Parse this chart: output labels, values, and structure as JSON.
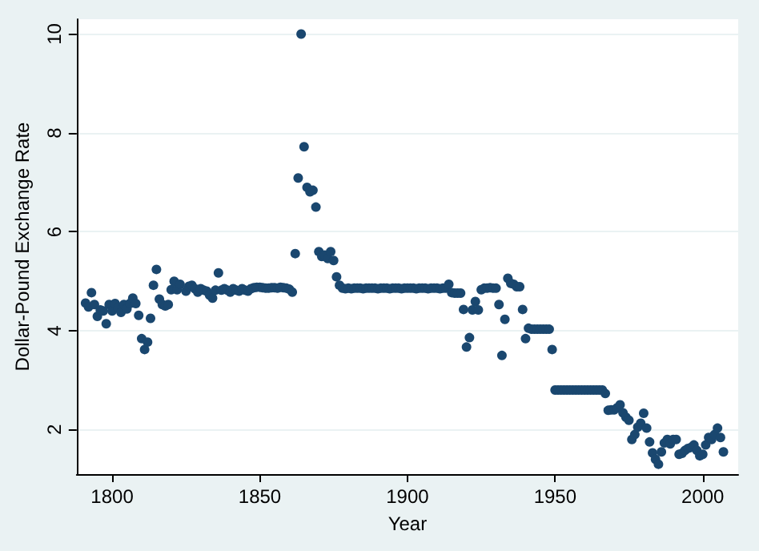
{
  "chart_data": {
    "type": "scatter",
    "xlabel": "Year",
    "ylabel": "Dollar-Pound Exchange Rate",
    "xlim": [
      1788,
      2012
    ],
    "xticks": [
      1800,
      1850,
      1900,
      1950,
      2000
    ],
    "ylim": [
      1.1,
      10.3
    ],
    "yticks": [
      2,
      4,
      6,
      8,
      10
    ],
    "grid": "y",
    "marker": "circle",
    "series": [
      {
        "color": "#1a476f",
        "x": [
          1791,
          1792,
          1793,
          1794,
          1795,
          1796,
          1797,
          1798,
          1799,
          1800,
          1801,
          1802,
          1803,
          1804,
          1805,
          1806,
          1807,
          1808,
          1809,
          1810,
          1811,
          1812,
          1813,
          1814,
          1815,
          1816,
          1817,
          1818,
          1819,
          1820,
          1821,
          1822,
          1823,
          1824,
          1825,
          1826,
          1827,
          1828,
          1829,
          1830,
          1831,
          1832,
          1833,
          1834,
          1835,
          1836,
          1837,
          1838,
          1839,
          1840,
          1841,
          1842,
          1843,
          1844,
          1845,
          1846,
          1847,
          1848,
          1849,
          1850,
          1851,
          1852,
          1853,
          1854,
          1855,
          1856,
          1857,
          1858,
          1859,
          1860,
          1861,
          1862,
          1863,
          1864,
          1865,
          1866,
          1867,
          1868,
          1869,
          1870,
          1871,
          1872,
          1873,
          1874,
          1875,
          1876,
          1877,
          1878,
          1879,
          1880,
          1881,
          1882,
          1883,
          1884,
          1885,
          1886,
          1887,
          1888,
          1889,
          1890,
          1891,
          1892,
          1893,
          1894,
          1895,
          1896,
          1897,
          1898,
          1899,
          1900,
          1901,
          1902,
          1903,
          1904,
          1905,
          1906,
          1907,
          1908,
          1909,
          1910,
          1911,
          1912,
          1913,
          1914,
          1915,
          1916,
          1917,
          1918,
          1919,
          1920,
          1921,
          1922,
          1923,
          1924,
          1925,
          1926,
          1927,
          1928,
          1929,
          1930,
          1931,
          1932,
          1933,
          1934,
          1935,
          1936,
          1937,
          1938,
          1939,
          1940,
          1941,
          1942,
          1943,
          1944,
          1945,
          1946,
          1947,
          1948,
          1949,
          1950,
          1951,
          1952,
          1953,
          1954,
          1955,
          1956,
          1957,
          1958,
          1959,
          1960,
          1961,
          1962,
          1963,
          1964,
          1965,
          1966,
          1967,
          1968,
          1969,
          1970,
          1971,
          1972,
          1973,
          1974,
          1975,
          1976,
          1977,
          1978,
          1979,
          1980,
          1981,
          1982,
          1983,
          1984,
          1985,
          1986,
          1987,
          1988,
          1989,
          1990,
          1991,
          1992,
          1993,
          1994,
          1995,
          1996,
          1997,
          1998,
          1999,
          2000,
          2001,
          2002,
          2003,
          2004,
          2005,
          2006,
          2007
        ],
        "values": [
          4.56,
          4.48,
          4.77,
          4.53,
          4.29,
          4.42,
          4.4,
          4.14,
          4.53,
          4.4,
          4.55,
          4.46,
          4.37,
          4.53,
          4.44,
          4.55,
          4.66,
          4.55,
          4.31,
          3.84,
          3.62,
          3.77,
          4.25,
          4.92,
          5.24,
          4.64,
          4.53,
          4.5,
          4.53,
          4.83,
          5.0,
          4.83,
          4.94,
          null,
          4.8,
          4.9,
          4.92,
          4.85,
          4.78,
          4.85,
          4.82,
          4.8,
          4.72,
          4.66,
          4.82,
          5.17,
          4.82,
          4.85,
          4.82,
          4.78,
          4.85,
          4.82,
          4.8,
          4.85,
          4.82,
          4.8,
          4.85,
          4.87,
          4.88,
          4.88,
          4.87,
          4.86,
          4.86,
          4.87,
          4.87,
          4.86,
          4.88,
          4.87,
          4.86,
          4.84,
          4.78,
          5.56,
          7.09,
          10.0,
          7.72,
          6.9,
          6.81,
          6.84,
          6.5,
          5.6,
          5.5,
          5.53,
          5.46,
          5.6,
          5.42,
          5.09,
          4.92,
          4.86,
          4.85,
          4.86,
          4.85,
          4.86,
          4.86,
          4.86,
          4.85,
          4.86,
          4.86,
          4.86,
          4.86,
          4.85,
          4.86,
          4.86,
          4.86,
          4.85,
          4.86,
          4.86,
          4.86,
          4.85,
          4.86,
          4.86,
          4.86,
          4.86,
          4.85,
          4.86,
          4.86,
          4.86,
          4.85,
          4.86,
          4.86,
          4.86,
          4.85,
          4.86,
          4.86,
          4.94,
          4.77,
          4.76,
          4.76,
          4.76,
          4.43,
          3.67,
          3.86,
          4.42,
          4.59,
          4.42,
          4.83,
          4.86,
          4.86,
          4.87,
          4.86,
          4.86,
          4.53,
          3.5,
          4.23,
          5.06,
          4.96,
          4.94,
          4.89,
          4.89,
          4.43,
          3.84,
          4.05,
          4.03,
          4.03,
          4.03,
          4.03,
          4.03,
          4.03,
          4.03,
          3.62,
          2.8,
          2.8,
          2.8,
          2.8,
          2.8,
          2.8,
          2.8,
          2.8,
          2.8,
          2.8,
          2.8,
          2.8,
          2.8,
          2.8,
          2.8,
          2.8,
          2.8,
          2.73,
          2.39,
          2.4,
          2.4,
          2.44,
          2.5,
          2.34,
          2.25,
          2.19,
          1.8,
          1.9,
          2.05,
          2.13,
          2.33,
          2.03,
          1.75,
          1.53,
          1.4,
          1.3,
          1.55,
          1.73,
          1.8,
          1.71,
          1.8,
          1.8,
          1.5,
          1.52,
          1.58,
          1.62,
          1.64,
          1.69,
          1.58,
          1.47,
          1.5,
          1.69,
          1.84,
          1.8,
          1.9,
          2.03,
          1.84,
          1.55
        ]
      }
    ]
  }
}
